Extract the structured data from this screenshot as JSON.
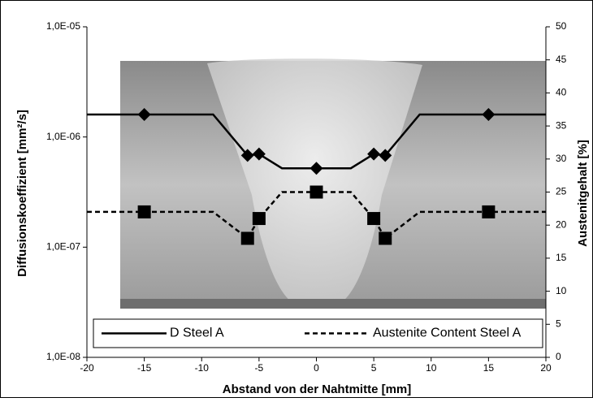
{
  "chart_data": {
    "type": "line",
    "x_label": "Abstand von der Nahtmitte [mm]",
    "y_label": "Diffusionskoeffizient [mm²/s]",
    "y2_label": "Austenitgehalt [%]",
    "xlim": [
      -20,
      20
    ],
    "xticks": [
      -20,
      -15,
      -10,
      -5,
      0,
      5,
      10,
      15,
      20
    ],
    "ylim": [
      1e-08,
      1e-05
    ],
    "ylog": true,
    "yticks": [
      {
        "value": 1e-08,
        "label": "1,0E-08"
      },
      {
        "value": 1e-07,
        "label": "1,0E-07"
      },
      {
        "value": 1e-06,
        "label": "1,0E-06"
      },
      {
        "value": 1e-05,
        "label": "1,0E-05"
      }
    ],
    "y2lim": [
      0,
      50
    ],
    "y2ticks": [
      0,
      5,
      10,
      15,
      20,
      25,
      30,
      35,
      40,
      45,
      50
    ],
    "legend": "bottom",
    "series": [
      {
        "name": "D Steel A",
        "color": "#000000",
        "dash": false,
        "marker": "diamond",
        "x": [
          -20,
          -15,
          -9,
          -6,
          -5,
          -3,
          0,
          3,
          5,
          6,
          9,
          15,
          20
        ],
        "values": [
          1.6e-06,
          1.6e-06,
          1.6e-06,
          6.8e-07,
          7e-07,
          5.2e-07,
          5.2e-07,
          5.2e-07,
          7e-07,
          6.8e-07,
          1.6e-06,
          1.6e-06,
          1.6e-06
        ],
        "markers": [
          1,
          3,
          4,
          6,
          8,
          9,
          11
        ]
      },
      {
        "name": "Austenite Content Steel A",
        "color": "#000000",
        "dash": true,
        "marker": "square",
        "axis": "y2",
        "x": [
          -20,
          -15,
          -9,
          -6,
          -5,
          -3,
          0,
          3,
          5,
          6,
          9,
          15,
          20
        ],
        "values": [
          22,
          22,
          22,
          18,
          21,
          25,
          25,
          25,
          21,
          18,
          22,
          22,
          22
        ],
        "markers": [
          1,
          3,
          4,
          6,
          8,
          9,
          11
        ]
      }
    ]
  }
}
